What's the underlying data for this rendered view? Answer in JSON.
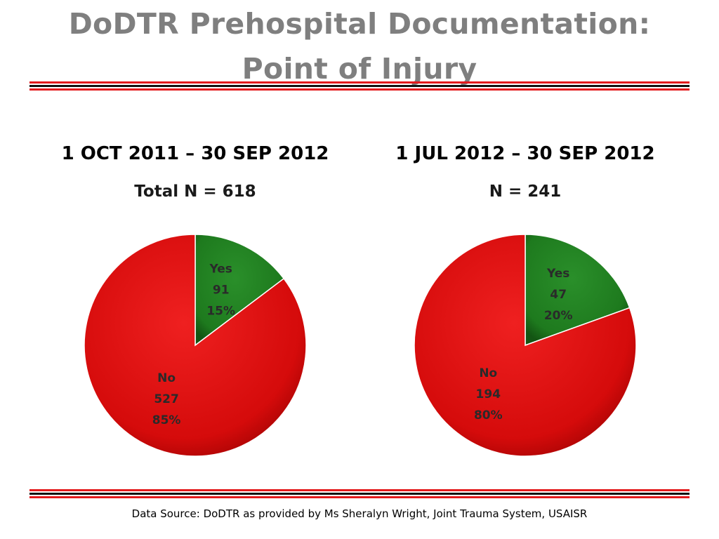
{
  "slide": {
    "title_line1": "DoDTR Prehospital Documentation:",
    "title_line2": "Point of Injury",
    "source": "Data Source: DoDTR as provided by Ms Sheralyn Wright, Joint Trauma System, USAISR"
  },
  "colors": {
    "yes": "#1e7a1e",
    "no": "#d90b0b",
    "rule_red": "#e31a1c",
    "rule_dark": "#111111",
    "title_gray": "#7f7f7f",
    "label_dark": "#2a2a2a"
  },
  "chart_data": [
    {
      "type": "pie",
      "title": "1 OCT 2011 – 30 SEP 2012",
      "subtitle": "Total N = 618",
      "slices": [
        {
          "label": "Yes",
          "value": 91,
          "percent": "15%"
        },
        {
          "label": "No",
          "value": 527,
          "percent": "85%"
        }
      ]
    },
    {
      "type": "pie",
      "title": "1 JUL 2012 – 30 SEP 2012",
      "subtitle": "N = 241",
      "slices": [
        {
          "label": "Yes",
          "value": 47,
          "percent": "20%"
        },
        {
          "label": "No",
          "value": 194,
          "percent": "80%"
        }
      ]
    }
  ]
}
